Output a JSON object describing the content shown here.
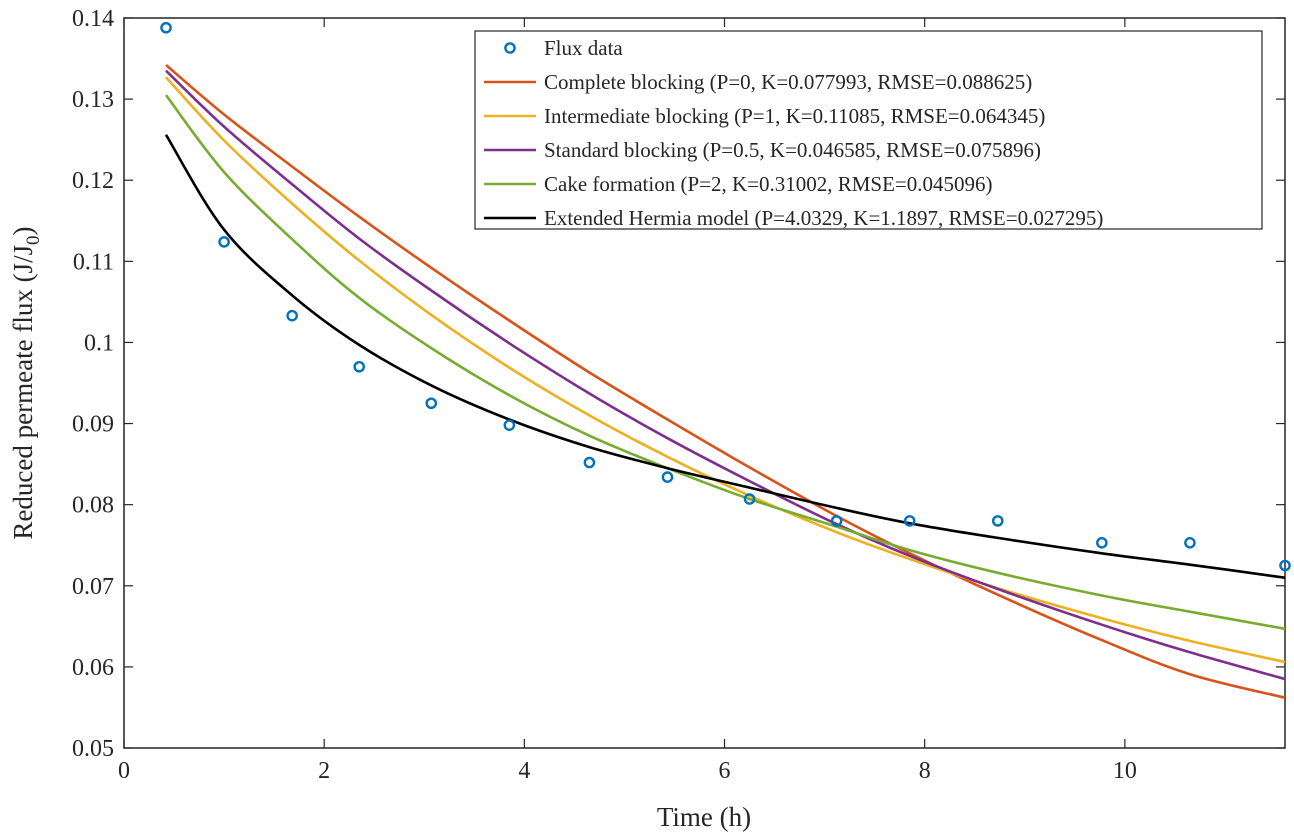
{
  "chart_data": {
    "type": "line",
    "xlabel": "Time (h)",
    "ylabel": "Reduced permeate flux (J/J_0)",
    "ylabel_parts": {
      "main": "Reduced permeate flux (J/J",
      "sub": "0",
      "close": ")"
    },
    "xlim": [
      0,
      11.6
    ],
    "ylim": [
      0.05,
      0.14
    ],
    "x_ticks": [
      0,
      2,
      4,
      6,
      8,
      10
    ],
    "x_tick_labels": [
      "0",
      "2",
      "4",
      "6",
      "8",
      "10"
    ],
    "y_ticks": [
      0.05,
      0.06,
      0.07,
      0.08,
      0.09,
      0.1,
      0.11,
      0.12,
      0.13,
      0.14
    ],
    "y_tick_labels": [
      "0.05",
      "0.06",
      "0.07",
      "0.08",
      "0.09",
      "0.1",
      "0.11",
      "0.12",
      "0.13",
      "0.14"
    ],
    "grid": false,
    "legend_position": "top-right",
    "scatter": {
      "name": "Flux data",
      "color": "#0072BD",
      "x": [
        0.42,
        1.0,
        1.68,
        2.35,
        3.07,
        3.85,
        4.65,
        5.43,
        6.25,
        7.12,
        7.85,
        8.73,
        9.77,
        10.65,
        11.6
      ],
      "y": [
        0.1388,
        0.1124,
        0.1033,
        0.097,
        0.0925,
        0.0898,
        0.0852,
        0.0834,
        0.0807,
        0.078,
        0.078,
        0.078,
        0.0753,
        0.0753,
        0.0725
      ]
    },
    "series": [
      {
        "name": "Complete blocking (P=0, K=0.077993, RMSE=0.088625)",
        "color": "#D95319",
        "x": [
          0.42,
          1.0,
          1.7,
          2.35,
          3.07,
          3.85,
          4.65,
          5.43,
          6.25,
          7.12,
          7.85,
          8.73,
          9.77,
          10.65,
          11.6
        ],
        "y": [
          0.1342,
          0.1281,
          0.1215,
          0.1155,
          0.1092,
          0.1027,
          0.0963,
          0.0905,
          0.0846,
          0.0786,
          0.074,
          0.0689,
          0.0633,
          0.0591,
          0.0562
        ]
      },
      {
        "name": "Intermediate blocking (P=1, K=0.11085, RMSE=0.064345)",
        "color": "#EDB120",
        "x": [
          0.42,
          1.0,
          1.7,
          2.35,
          3.07,
          3.85,
          4.65,
          5.43,
          6.25,
          7.12,
          7.85,
          8.73,
          9.77,
          10.65,
          11.6
        ],
        "y": [
          0.1327,
          0.1249,
          0.1169,
          0.1101,
          0.1034,
          0.0969,
          0.091,
          0.0859,
          0.0811,
          0.0766,
          0.0733,
          0.0697,
          0.066,
          0.0632,
          0.0606
        ]
      },
      {
        "name": "Standard blocking (P=0.5, K=0.046585, RMSE=0.075896)",
        "color": "#7E2F8E",
        "x": [
          0.42,
          1.0,
          1.7,
          2.35,
          3.07,
          3.85,
          4.65,
          5.43,
          6.25,
          7.12,
          7.85,
          8.73,
          9.77,
          10.65,
          11.6
        ],
        "y": [
          0.1335,
          0.1266,
          0.1193,
          0.1128,
          0.1064,
          0.0999,
          0.0937,
          0.0882,
          0.0829,
          0.0776,
          0.0737,
          0.0696,
          0.0652,
          0.0618,
          0.0585
        ]
      },
      {
        "name": "Cake formation (P=2, K=0.31002, RMSE=0.045096)",
        "color": "#77AC30",
        "x": [
          0.42,
          1.0,
          1.7,
          2.35,
          3.07,
          3.85,
          4.65,
          5.43,
          6.25,
          7.12,
          7.85,
          8.73,
          9.77,
          10.65,
          11.6
        ],
        "y": [
          0.1305,
          0.121,
          0.1125,
          0.1055,
          0.0993,
          0.0935,
          0.0885,
          0.0845,
          0.0807,
          0.0773,
          0.0744,
          0.0716,
          0.0688,
          0.0668,
          0.0647
        ]
      },
      {
        "name": "Extended Hermia model (P=4.0329, K=1.1897, RMSE=0.027295)",
        "color": "#000000",
        "x": [
          0.42,
          1.0,
          1.7,
          2.35,
          3.07,
          3.85,
          4.65,
          5.43,
          6.25,
          7.12,
          7.85,
          8.73,
          9.77,
          10.65,
          11.6
        ],
        "y": [
          0.1256,
          0.1139,
          0.1056,
          0.0997,
          0.0947,
          0.0905,
          0.0871,
          0.0845,
          0.0821,
          0.0796,
          0.0777,
          0.0759,
          0.074,
          0.0726,
          0.071
        ]
      }
    ]
  }
}
